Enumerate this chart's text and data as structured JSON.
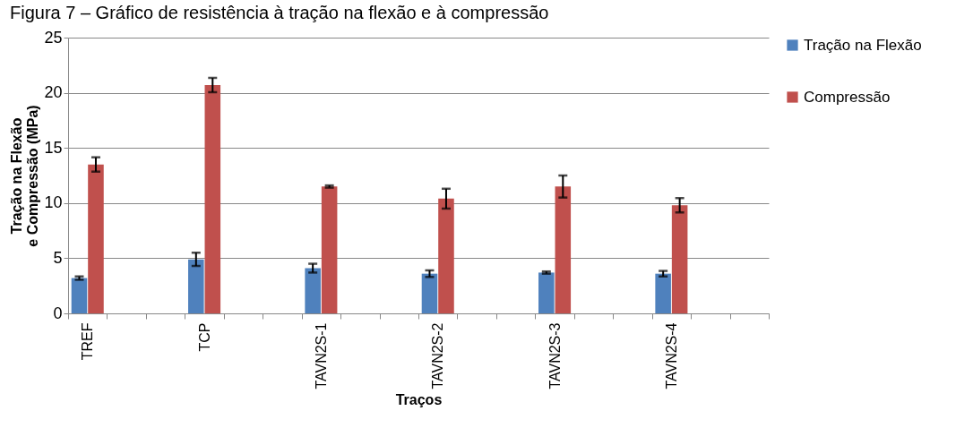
{
  "chart_data": {
    "type": "bar",
    "title": "Figura 7 – Gráfico de resistência à tração na flexão e à compressão",
    "xlabel": "Traços",
    "ylabel": "Tração na Flexão e Compressão (MPa)",
    "categories": [
      "TREF",
      null,
      null,
      "TCP",
      null,
      null,
      "TAVN2S-1",
      null,
      null,
      "TAVN2S-2",
      null,
      null,
      "TAVN2S-3",
      null,
      null,
      "TAVN2S-4",
      null,
      null
    ],
    "series": [
      {
        "name": "Tração na Flexão",
        "color": "#4f81bd",
        "values": [
          3.2,
          null,
          null,
          4.9,
          null,
          null,
          4.1,
          null,
          null,
          3.6,
          null,
          null,
          3.7,
          null,
          null,
          3.6,
          null,
          null
        ],
        "errors": [
          0.15,
          null,
          null,
          0.6,
          null,
          null,
          0.4,
          null,
          null,
          0.3,
          null,
          null,
          0.1,
          null,
          null,
          0.25,
          null,
          null
        ]
      },
      {
        "name": "Compressão",
        "color": "#c0504d",
        "values": [
          13.5,
          null,
          null,
          20.7,
          null,
          null,
          11.5,
          null,
          null,
          10.4,
          null,
          null,
          11.5,
          null,
          null,
          9.8,
          null,
          null
        ],
        "errors": [
          0.65,
          null,
          null,
          0.65,
          null,
          null,
          0.1,
          null,
          null,
          0.9,
          null,
          null,
          1.0,
          null,
          null,
          0.65,
          null,
          null
        ]
      }
    ],
    "ylim": [
      0,
      25
    ],
    "yticks": [
      0,
      5,
      10,
      15,
      20,
      25
    ],
    "grid": "y",
    "legend": "right"
  }
}
